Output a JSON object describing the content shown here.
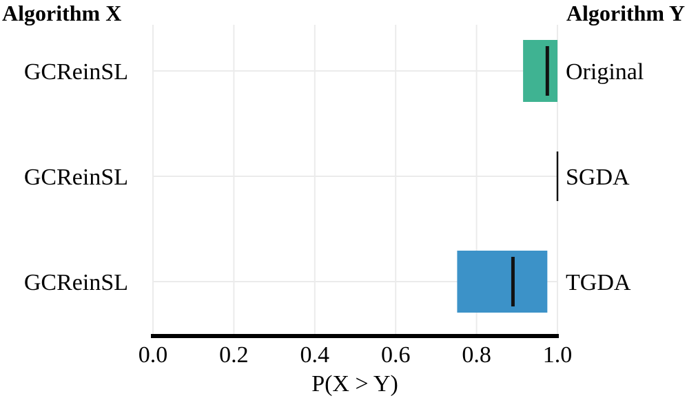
{
  "chart_data": {
    "type": "bar",
    "left_header": "Algorithm X",
    "right_header": "Algorithm Y",
    "xlabel": "P(X > Y)",
    "xlim": [
      0,
      1
    ],
    "xticks": [
      "0.0",
      "0.2",
      "0.4",
      "0.6",
      "0.8",
      "1.0"
    ],
    "grid": true,
    "rows": [
      {
        "algorithm_x": "GCReinSL",
        "algorithm_y": "Original",
        "low": 0.915,
        "high": 1.0,
        "median": 0.975,
        "color": "#3fb392"
      },
      {
        "algorithm_x": "GCReinSL",
        "algorithm_y": "SGDA",
        "low": 1.0,
        "high": 1.0,
        "median": 1.0,
        "color": "#000000"
      },
      {
        "algorithm_x": "GCReinSL",
        "algorithm_y": "TGDA",
        "low": 0.752,
        "high": 0.975,
        "median": 0.89,
        "color": "#3c92c8"
      }
    ]
  }
}
